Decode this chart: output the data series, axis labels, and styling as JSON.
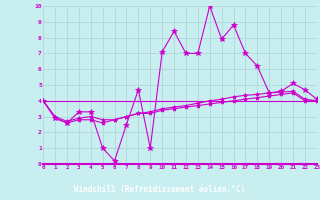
{
  "xlabel": "Windchill (Refroidissement éolien,°C)",
  "xlim": [
    0,
    23
  ],
  "ylim": [
    0,
    10
  ],
  "bg_color": "#c8eef0",
  "line_color": "#cc00cc",
  "grid_color": "#b0d8dc",
  "label_bar_color": "#9900aa",
  "label_text_color": "#ffffff",
  "series": [
    {
      "x": [
        0,
        1,
        2,
        3,
        4,
        5,
        6,
        7,
        8,
        9,
        10,
        11,
        12,
        13,
        14,
        15,
        16,
        17,
        18,
        19,
        20,
        21,
        22,
        23
      ],
      "y": [
        4.0,
        2.9,
        2.6,
        3.3,
        3.3,
        1.0,
        0.2,
        2.5,
        4.7,
        1.0,
        7.1,
        8.4,
        7.0,
        7.0,
        10.0,
        7.9,
        8.8,
        7.0,
        6.2,
        4.5,
        4.6,
        5.1,
        4.7,
        4.1
      ],
      "marker": "*",
      "markersize": 4
    },
    {
      "x": [
        0,
        1,
        2,
        3,
        4,
        5,
        6,
        7,
        8,
        9,
        10,
        11,
        12,
        13,
        14,
        15,
        16,
        17,
        18,
        19,
        20,
        21,
        22,
        23
      ],
      "y": [
        4.0,
        3.0,
        2.7,
        2.9,
        3.0,
        2.8,
        2.8,
        3.0,
        3.2,
        3.3,
        3.5,
        3.6,
        3.7,
        3.85,
        4.0,
        4.1,
        4.25,
        4.35,
        4.4,
        4.5,
        4.55,
        4.6,
        4.1,
        4.0
      ],
      "marker": "*",
      "markersize": 3
    },
    {
      "x": [
        0,
        1,
        2,
        3,
        4,
        5,
        6,
        7,
        8,
        9,
        10,
        11,
        12,
        13,
        14,
        15,
        16,
        17,
        18,
        19,
        20,
        21,
        22,
        23
      ],
      "y": [
        4.0,
        2.9,
        2.6,
        2.8,
        2.8,
        2.6,
        2.8,
        3.0,
        3.2,
        3.2,
        3.4,
        3.5,
        3.6,
        3.7,
        3.8,
        3.9,
        4.0,
        4.1,
        4.2,
        4.3,
        4.4,
        4.5,
        4.0,
        4.0
      ],
      "marker": "*",
      "markersize": 3
    },
    {
      "x": [
        0,
        23
      ],
      "y": [
        4.0,
        4.0
      ],
      "marker": null,
      "markersize": 0
    }
  ]
}
